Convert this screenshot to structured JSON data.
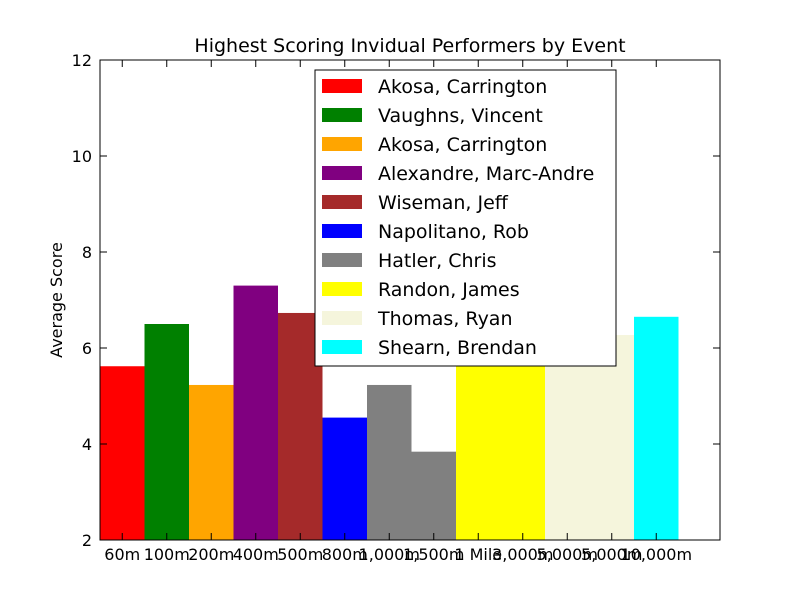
{
  "chart_data": {
    "type": "bar",
    "title": "Highest Scoring Invidual Performers by Event",
    "xlabel": "",
    "ylabel": "Average Score",
    "ylim": [
      2,
      12
    ],
    "yticks": [
      2,
      4,
      6,
      8,
      10,
      12
    ],
    "grid": false,
    "legend_position": "top-center",
    "categories": [
      "60m",
      "100m",
      "200m",
      "400m",
      "500m",
      "800m",
      "1,000m",
      "1,500m",
      "1 Mile",
      "3,000m",
      "5,000m",
      "5,000m",
      "10,000m"
    ],
    "series": [
      {
        "name": "Akosa, Carrington",
        "color": "#ff0000",
        "x": [
          0
        ],
        "values": [
          5.62
        ]
      },
      {
        "name": "Vaughns, Vincent",
        "color": "#008000",
        "x": [
          1
        ],
        "values": [
          6.5
        ]
      },
      {
        "name": "Akosa, Carrington",
        "color": "#ffa500",
        "x": [
          2
        ],
        "values": [
          5.23
        ]
      },
      {
        "name": "Alexandre, Marc-Andre",
        "color": "#800080",
        "x": [
          3
        ],
        "values": [
          7.3
        ]
      },
      {
        "name": "Wiseman, Jeff",
        "color": "#a52a2a",
        "x": [
          4
        ],
        "values": [
          6.73
        ]
      },
      {
        "name": "Napolitano, Rob",
        "color": "#0000ff",
        "x": [
          5
        ],
        "values": [
          4.55
        ]
      },
      {
        "name": "Hatler, Chris",
        "color": "#808080",
        "x": [
          6,
          7
        ],
        "values": [
          5.23,
          3.84
        ]
      },
      {
        "name": "Randon, James",
        "color": "#ffff00",
        "x": [
          8,
          9
        ],
        "values": [
          6.0,
          6.0
        ]
      },
      {
        "name": "Thomas, Ryan",
        "color": "#f5f5dc",
        "x": [
          10,
          11
        ],
        "values": [
          6.27,
          6.27
        ]
      },
      {
        "name": "Shearn, Brendan",
        "color": "#00ffff",
        "x": [
          12
        ],
        "values": [
          6.65
        ]
      }
    ]
  }
}
